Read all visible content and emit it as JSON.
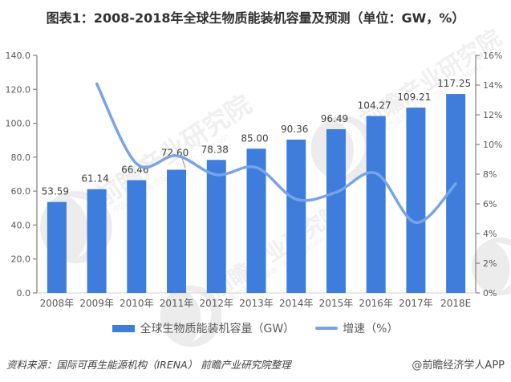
{
  "title": "图表1：2008-2018年全球生物质能装机容量及预测（单位：GW，%）",
  "chart_data": {
    "type": "bar",
    "title": "图表1：2008-2018年全球生物质能装机容量及预测（单位：GW，%）",
    "categories": [
      "2008年",
      "2009年",
      "2010年",
      "2011年",
      "2012年",
      "2013年",
      "2014年",
      "2015年",
      "2016年",
      "2017年",
      "2018E"
    ],
    "series": [
      {
        "name": "全球生物质能装机容量（GW）",
        "type": "bar",
        "axis": "left",
        "color": "#3E7DDC",
        "values": [
          53.59,
          61.14,
          66.46,
          72.6,
          78.38,
          85.0,
          90.36,
          96.49,
          104.27,
          109.21,
          117.25
        ],
        "value_labels": [
          "53.59",
          "61.14",
          "66.46",
          "72.60",
          "78.38",
          "85.00",
          "90.36",
          "96.49",
          "104.27",
          "109.21",
          "117.25"
        ]
      },
      {
        "name": "增速（%）",
        "type": "line",
        "axis": "right",
        "color": "#78A3E8",
        "values": [
          null,
          14.09,
          8.7,
          9.24,
          7.96,
          8.45,
          6.31,
          6.78,
          8.06,
          4.74,
          7.36
        ]
      }
    ],
    "left_axis": {
      "min": 0,
      "max": 140,
      "step": 20,
      "tick_labels": [
        "0.0",
        "20.0",
        "40.0",
        "60.0",
        "80.0",
        "100.0",
        "120.0",
        "140.0"
      ]
    },
    "right_axis": {
      "min": 0,
      "max": 16,
      "step": 2,
      "tick_labels": [
        "0%",
        "2%",
        "4%",
        "6%",
        "8%",
        "10%",
        "12%",
        "14%",
        "16%"
      ]
    },
    "grid": false,
    "legend_position": "bottom",
    "bar_value_labels": true
  },
  "legend": [
    {
      "label": "全球生物质能装机容量（GW）",
      "swatch": "bar"
    },
    {
      "label": "增速（%）",
      "swatch": "line"
    }
  ],
  "footer": {
    "source": "资料来源：国际可再生能源机构（IRENA） 前瞻产业研究院整理",
    "credit": "@前瞻经济学人APP"
  },
  "watermark": {
    "brand": "前瞻产业研究院",
    "sub": "中国产业咨询领导者（股票：839599）"
  },
  "colors": {
    "bar": "#3E7DDC",
    "line": "#78A3E8",
    "title_text": "#303030",
    "axis_text": "#595959",
    "value_label_text": "#404040",
    "axis_line": "#808080",
    "baseline": "#D9D9D9"
  }
}
